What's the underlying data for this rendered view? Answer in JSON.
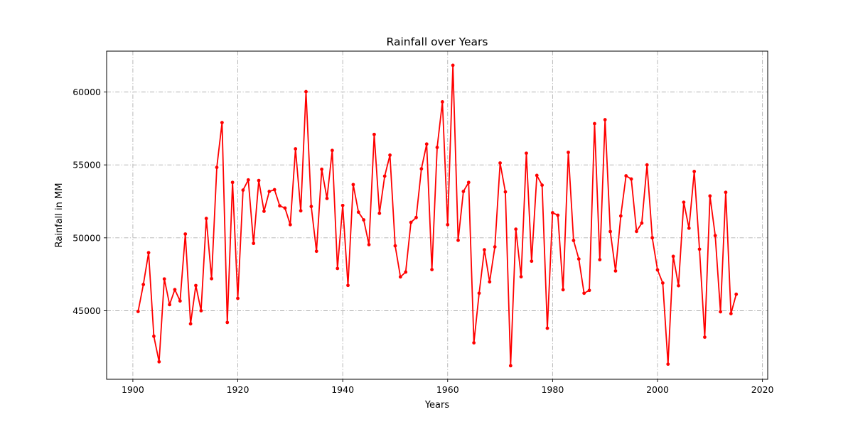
{
  "chart_data": {
    "type": "line",
    "title": "Rainfall over Years",
    "xlabel": "Years",
    "ylabel": "Rainfall in MM",
    "xlim": [
      1895,
      2021
    ],
    "ylim": [
      40300,
      62800
    ],
    "x_ticks": [
      1900,
      1920,
      1940,
      1960,
      1980,
      2000,
      2020
    ],
    "y_ticks": [
      45000,
      50000,
      55000,
      60000
    ],
    "grid": true,
    "marker": "circle",
    "series": [
      {
        "color": "#ff0000",
        "x": [
          1901,
          1902,
          1903,
          1904,
          1905,
          1906,
          1907,
          1908,
          1909,
          1910,
          1911,
          1912,
          1913,
          1914,
          1915,
          1916,
          1917,
          1918,
          1919,
          1920,
          1921,
          1922,
          1923,
          1924,
          1925,
          1926,
          1927,
          1928,
          1929,
          1930,
          1931,
          1932,
          1933,
          1934,
          1935,
          1936,
          1937,
          1938,
          1939,
          1940,
          1941,
          1942,
          1943,
          1944,
          1945,
          1946,
          1947,
          1948,
          1949,
          1950,
          1951,
          1952,
          1953,
          1954,
          1955,
          1956,
          1957,
          1958,
          1959,
          1960,
          1961,
          1962,
          1963,
          1964,
          1965,
          1966,
          1967,
          1968,
          1969,
          1970,
          1971,
          1972,
          1973,
          1974,
          1975,
          1976,
          1977,
          1978,
          1979,
          1980,
          1981,
          1982,
          1983,
          1984,
          1985,
          1986,
          1987,
          1988,
          1989,
          1990,
          1991,
          1992,
          1993,
          1994,
          1995,
          1996,
          1997,
          1998,
          1999,
          2000,
          2001,
          2002,
          2003,
          2004,
          2005,
          2006,
          2007,
          2008,
          2009,
          2010,
          2011,
          2012,
          2013,
          2014,
          2015
        ],
        "values": [
          44950,
          46800,
          48980,
          43250,
          41500,
          47180,
          45420,
          46450,
          45670,
          50260,
          44100,
          46730,
          45000,
          51330,
          47200,
          54830,
          57900,
          44200,
          53800,
          45850,
          53270,
          53970,
          49620,
          53930,
          51820,
          53180,
          53300,
          52190,
          52040,
          50900,
          56100,
          51850,
          60020,
          52150,
          49080,
          54700,
          52700,
          55990,
          47900,
          52220,
          46740,
          53650,
          51760,
          51230,
          49530,
          57090,
          51680,
          54230,
          55670,
          49450,
          47320,
          47650,
          51060,
          51390,
          54730,
          56430,
          47820,
          56200,
          59320,
          50900,
          61830,
          49830,
          53180,
          53800,
          42800,
          46200,
          49180,
          46980,
          49380,
          55130,
          53150,
          41230,
          50590,
          47330,
          55800,
          48400,
          54280,
          53610,
          43800,
          51720,
          51550,
          46440,
          55860,
          49820,
          48550,
          46200,
          46400,
          57830,
          48500,
          58100,
          50430,
          47730,
          51500,
          54250,
          54030,
          50440,
          51010,
          55000,
          50000,
          47800,
          46900,
          41340,
          48730,
          46720,
          52440,
          50660,
          54550,
          49220,
          43190,
          52870,
          50150,
          44930,
          53120,
          44800,
          46130
        ]
      }
    ]
  }
}
